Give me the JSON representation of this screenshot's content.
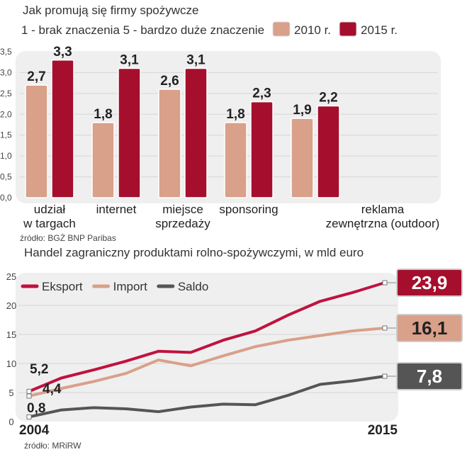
{
  "chart_data": [
    {
      "type": "bar",
      "title": "Jak promują się firmy spożywcze",
      "subtitle": "1 - brak znaczenia  5 -  bardzo duże znaczenie",
      "categories": [
        [
          "udział",
          "w targach"
        ],
        [
          "internet"
        ],
        [
          "miejsce",
          "sprzedaży"
        ],
        [
          "sponsoring"
        ],
        [
          "reklama",
          "zewnętrzna (outdoor)"
        ]
      ],
      "series": [
        {
          "name": "2010 r.",
          "color": "#d9a08a",
          "values": [
            2.7,
            1.8,
            2.6,
            1.8,
            1.9
          ],
          "labels": [
            "2,7",
            "1,8",
            "2,6",
            "1,8",
            "1,9"
          ]
        },
        {
          "name": "2015 r.",
          "color": "#a50f2d",
          "values": [
            3.3,
            3.1,
            3.1,
            2.3,
            2.2
          ],
          "labels": [
            "3,3",
            "3,1",
            "3,1",
            "2,3",
            "2,2"
          ]
        }
      ],
      "ylim": [
        0,
        3.5
      ],
      "yticks": [
        "0,0",
        "0,5",
        "1,0",
        "1,5",
        "2,0",
        "2,5",
        "3,0",
        "3,5"
      ],
      "grid": true,
      "legend": "top-right",
      "source": "źródło: BGŻ BNP Paribas"
    },
    {
      "type": "line",
      "title": "Handel zagraniczny produktami rolno-spożywczymi, w mld euro",
      "x": [
        2004,
        2005,
        2006,
        2007,
        2008,
        2009,
        2010,
        2011,
        2012,
        2013,
        2014,
        2015
      ],
      "xticks": [
        "2004",
        "2015"
      ],
      "series": [
        {
          "name": "Eksport",
          "color": "#c0123f",
          "values": [
            5.2,
            7.5,
            8.9,
            10.4,
            12.1,
            11.9,
            14.0,
            15.6,
            18.3,
            20.7,
            22.2,
            23.9
          ],
          "start_label": "5,2",
          "end_label": "23,9"
        },
        {
          "name": "Import",
          "color": "#d9a08a",
          "values": [
            4.4,
            5.7,
            6.9,
            8.3,
            10.6,
            9.6,
            11.3,
            12.9,
            14.0,
            14.8,
            15.6,
            16.1
          ],
          "start_label": "4,4",
          "end_label": "16,1"
        },
        {
          "name": "Saldo",
          "color": "#555555",
          "values": [
            0.8,
            2.0,
            2.4,
            2.2,
            1.7,
            2.5,
            3.0,
            2.9,
            4.5,
            6.4,
            7.0,
            7.8
          ],
          "start_label": "0,8",
          "end_label": "7,8"
        }
      ],
      "ylim": [
        0,
        25
      ],
      "yticks": [
        "0",
        "5",
        "10",
        "15",
        "20",
        "25"
      ],
      "grid": true,
      "legend": "top-left",
      "source": "źródło:  MRiRW"
    }
  ]
}
